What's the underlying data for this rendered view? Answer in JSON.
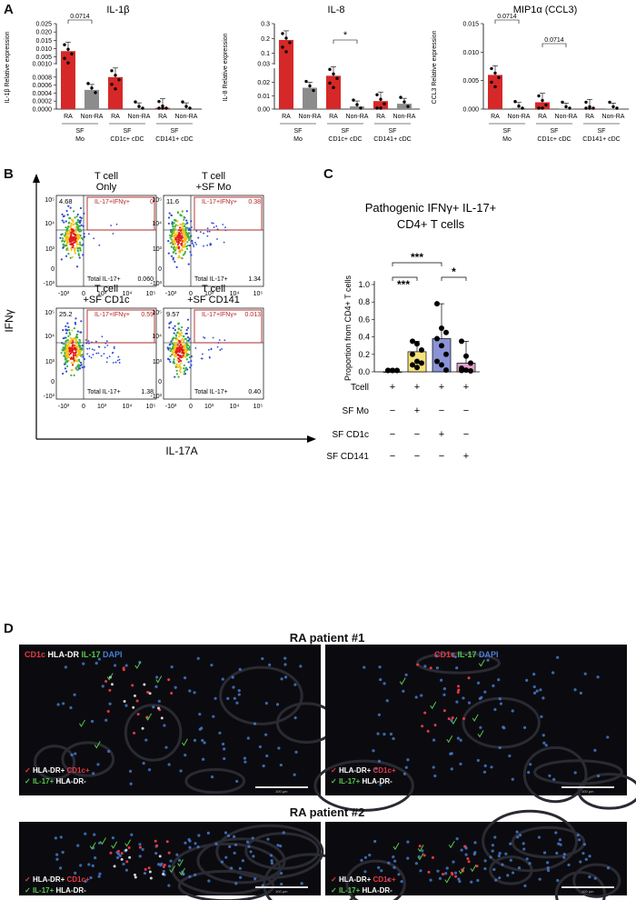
{
  "panel_letters": {
    "a": "A",
    "b": "B",
    "c": "C",
    "d": "D"
  },
  "colors": {
    "ra_bar": "#d62828",
    "nonra_bar": "#8c8c8c",
    "c_tcell": "#d9d9d9",
    "c_mo": "#f6e27a",
    "c_cd1c": "#8a93d6",
    "c_cd141": "#e3a0cf",
    "gate": "#b22222",
    "micro_red": "#e63946",
    "micro_green": "#57c84d",
    "micro_blue": "#4a7fd6"
  },
  "chart_data": [
    {
      "type": "bar",
      "title": "IL-1β",
      "ylabel": "IL-1β Relative expression",
      "categories": [
        "RA",
        "Non-RA",
        "RA",
        "Non-RA",
        "RA",
        "Non-RA"
      ],
      "groups": [
        [
          "SF",
          "Mo"
        ],
        [
          "SF",
          "CD1c+ cDC"
        ],
        [
          "SF",
          "CD141+ cDC"
        ]
      ],
      "broken_axis": true,
      "ylim_upper": [
        0.001,
        0.025
      ],
      "yticks_upper": [
        "0.025",
        "0.020",
        "0.015",
        "0.010",
        "0.005"
      ],
      "ylim_lower": [
        0,
        0.001
      ],
      "yticks_lower": [
        "0.0010",
        "0.0008",
        "0.0006",
        "0.0004",
        "0.0002",
        "0.0000"
      ],
      "values": [
        0.0085,
        0.00048,
        0.0008,
        2e-05,
        3e-05,
        2e-05
      ],
      "annotations": [
        {
          "from": 0,
          "to": 1,
          "text": "0.0714"
        }
      ]
    },
    {
      "type": "bar",
      "title": "IL-8",
      "ylabel": "IL-8 Relative expression",
      "categories": [
        "RA",
        "Non-RA",
        "RA",
        "Non-RA",
        "RA",
        "Non-RA"
      ],
      "groups": [
        [
          "SF",
          "Mo"
        ],
        [
          "SF",
          "CD1c+ cDC"
        ],
        [
          "SF",
          "CD141+ cDC"
        ]
      ],
      "broken_axis": true,
      "ylim_upper": [
        0.03,
        0.3
      ],
      "yticks_upper": [
        "0.3",
        "0.2",
        "0.1",
        "0.03"
      ],
      "ylim_lower": [
        0,
        0.03
      ],
      "yticks_lower": [
        "0.02",
        "0.01",
        "0.00"
      ],
      "values": [
        0.19,
        0.016,
        0.025,
        0.002,
        0.006,
        0.004
      ],
      "annotations": [
        {
          "from": 2,
          "to": 3,
          "text": "*"
        }
      ]
    },
    {
      "type": "bar",
      "title": "MIP1α (CCL3)",
      "ylabel": "CCL3 Relative expression",
      "categories": [
        "RA",
        "Non-RA",
        "RA",
        "Non-RA",
        "RA",
        "Non-RA"
      ],
      "groups": [
        [
          "SF",
          "Mo"
        ],
        [
          "SF",
          "CD1c+ cDC"
        ],
        [
          "SF",
          "CD141+ cDC"
        ]
      ],
      "broken_axis": false,
      "ylim": [
        0,
        0.015
      ],
      "yticks": [
        "0.015",
        "0.010",
        "0.005",
        "0.000"
      ],
      "values": [
        0.006,
        0.0002,
        0.0012,
        0.0,
        0.0,
        0.0
      ],
      "annotations": [
        {
          "from": 0,
          "to": 1,
          "text": "0.0714"
        },
        {
          "from": 2,
          "to": 3,
          "text": "0.0714"
        }
      ]
    },
    {
      "type": "scatter",
      "ylabel": "IFNγ",
      "xlabel": "IL-17A",
      "subplots": [
        {
          "title": [
            "T cell",
            "Only"
          ],
          "q_ul": "4.68",
          "gate_label": "IL-17+IFNγ+",
          "gate_value": "0",
          "total_label": "Total IL-17+",
          "total_value": "0.060"
        },
        {
          "title": [
            "T cell",
            "+SF Mo"
          ],
          "q_ul": "11.6",
          "gate_label": "IL-17+IFNγ+",
          "gate_value": "0.38",
          "total_label": "Total IL-17+",
          "total_value": "1.34"
        },
        {
          "title": [
            "T cell",
            "+SF CD1c"
          ],
          "q_ul": "25.2",
          "gate_label": "IL-17+IFNγ+",
          "gate_value": "0.59",
          "total_label": "Total IL-17+",
          "total_value": "1.38"
        },
        {
          "title": [
            "T cell",
            "+SF CD141"
          ],
          "q_ul": "9.57",
          "gate_label": "IL-17+IFNγ+",
          "gate_value": "0.013",
          "total_label": "Total IL-17+",
          "total_value": "0.40"
        }
      ],
      "yticks": [
        "10⁵",
        "10⁴",
        "10³",
        "0",
        "-10³"
      ],
      "xticks": [
        "-10³",
        "0",
        "10³",
        "10⁴",
        "10⁵"
      ]
    },
    {
      "type": "bar",
      "title": "Pathogenic IFNγ+ IL-17+ CD4+ T cells",
      "ylabel": "Proportion from CD4+ T cells",
      "ylim": [
        0,
        1.0
      ],
      "yticks": [
        "1.0",
        "0.8",
        "0.6",
        "0.4",
        "0.2",
        "0.0"
      ],
      "values": [
        0.0,
        0.23,
        0.38,
        0.1
      ],
      "points": [
        [
          0,
          0,
          0,
          0,
          0,
          0,
          0,
          0
        ],
        [
          0.35,
          0.32,
          0.25,
          0.2,
          0.12,
          0.1,
          0.08,
          0.05
        ],
        [
          0.78,
          0.5,
          0.45,
          0.38,
          0.3,
          0.2,
          0.12,
          0.08,
          0.02
        ],
        [
          0.35,
          0.18,
          0.1,
          0.04,
          0.02,
          0.01,
          0.0
        ]
      ],
      "significance": [
        {
          "from": 0,
          "to": 2,
          "text": "***"
        },
        {
          "from": 0,
          "to": 1,
          "text": "***"
        },
        {
          "from": 2,
          "to": 3,
          "text": "*"
        }
      ],
      "condition_rows": [
        {
          "label": "Tcell",
          "marks": [
            "+",
            "+",
            "+",
            "+"
          ]
        },
        {
          "label": "SF Mo",
          "marks": [
            "−",
            "+",
            "−",
            "−"
          ]
        },
        {
          "label": "SF CD1c",
          "marks": [
            "−",
            "−",
            "+",
            "−"
          ]
        },
        {
          "label": "SF CD141",
          "marks": [
            "−",
            "−",
            "−",
            "+"
          ]
        }
      ]
    }
  ],
  "panel_d": {
    "patient1_title": "RA patient #1",
    "patient2_title": "RA patient #2",
    "stain_left": [
      {
        "text": "CD1c",
        "color": "#e63946"
      },
      {
        "text": "HLA-DR",
        "color": "#ffffff"
      },
      {
        "text": "IL-17",
        "color": "#57c84d"
      },
      {
        "text": "DAPI",
        "color": "#4a7fd6"
      }
    ],
    "stain_right": [
      {
        "text": "CD1c",
        "color": "#e63946"
      },
      {
        "text": "IL-17",
        "color": "#57c84d"
      },
      {
        "text": "DAPI",
        "color": "#4a7fd6"
      }
    ],
    "legend1_a": "HLA-DR+",
    "legend1_b": "CD1c+",
    "legend2_a": "IL-17+",
    "legend2_b": "HLA-DR-",
    "scale_text": "100 μm"
  }
}
